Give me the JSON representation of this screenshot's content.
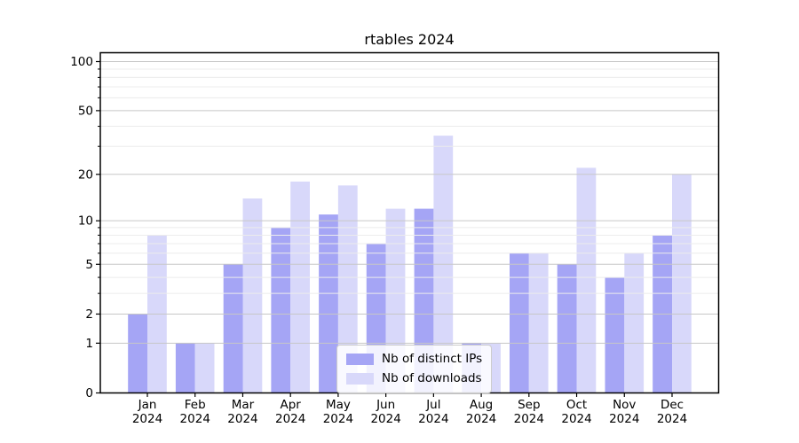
{
  "chart_data": {
    "type": "bar",
    "title": "rtables 2024",
    "categories": [
      "Jan 2024",
      "Feb 2024",
      "Mar 2024",
      "Apr 2024",
      "May 2024",
      "Jun 2024",
      "Jul 2024",
      "Aug 2024",
      "Sep 2024",
      "Oct 2024",
      "Nov 2024",
      "Dec 2024"
    ],
    "series": [
      {
        "name": "Nb of distinct IPs",
        "color": "#a5a5f5",
        "values": [
          2,
          1,
          5,
          9,
          11,
          7,
          12,
          1,
          6,
          5,
          4,
          8
        ]
      },
      {
        "name": "Nb of downloads",
        "color": "#d8d8fa",
        "values": [
          8,
          1,
          14,
          18,
          17,
          12,
          35,
          1,
          6,
          22,
          6,
          20
        ]
      }
    ],
    "xlabel": "",
    "ylabel": "",
    "yscale": "log1p",
    "ylim": [
      0,
      110
    ],
    "y_axis": {
      "major_ticks": [
        0,
        1,
        2,
        5,
        10,
        20,
        50,
        100
      ],
      "minor_ticks": [
        3,
        4,
        6,
        7,
        8,
        9,
        30,
        40,
        60,
        70,
        80,
        90
      ]
    },
    "grid": true,
    "legend_position": "bottom-center"
  }
}
